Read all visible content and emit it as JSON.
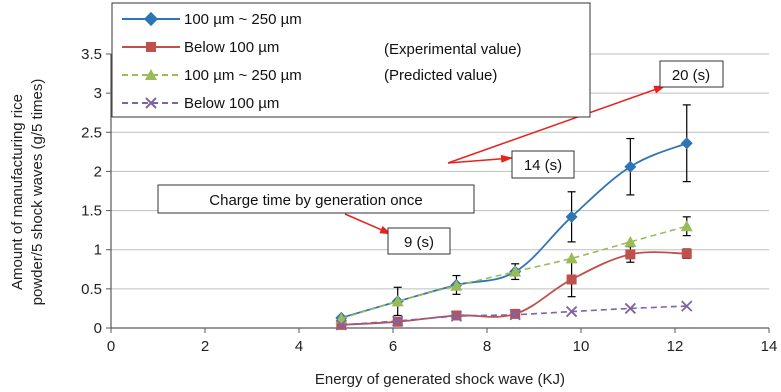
{
  "chart_data": {
    "type": "line",
    "xlabel": "Energy of generated shock wave (KJ)",
    "ylabel_lines": [
      "Amount of manufacturing rice",
      "powder/5 shock waves (g/5 times)"
    ],
    "xlim": [
      0,
      14
    ],
    "ylim": [
      0,
      3.5
    ],
    "x_ticks": [
      "0",
      "2",
      "4",
      "6",
      "8",
      "10",
      "12",
      "14"
    ],
    "y_ticks": [
      "0",
      "0.5",
      "1",
      "1.5",
      "2",
      "2.5",
      "3",
      "3.5"
    ],
    "grid": "horizontal",
    "legend_position": "top-left",
    "series": [
      {
        "name": "100 µm ~ 250 µm",
        "style": "solid-diamond",
        "color": "#2e75b6",
        "x": [
          4.9,
          6.1,
          7.35,
          8.6,
          9.8,
          11.05,
          12.25
        ],
        "y": [
          0.13,
          0.34,
          0.55,
          0.72,
          1.42,
          2.06,
          2.36
        ],
        "err": [
          0,
          0.18,
          0.12,
          0.1,
          0.32,
          0.36,
          0.49
        ]
      },
      {
        "name": "Below 100 µm",
        "style": "solid-square",
        "color": "#c0504d",
        "x": [
          4.9,
          6.1,
          7.35,
          8.6,
          9.8,
          11.05,
          12.25
        ],
        "y": [
          0.04,
          0.08,
          0.16,
          0.18,
          0.62,
          0.94,
          0.95
        ],
        "err": [
          0,
          0,
          0,
          0,
          0.22,
          0.1,
          0.06
        ]
      },
      {
        "name": "100 µm ~ 250 µm",
        "style": "dashed-triangle",
        "color": "#9bbb59",
        "x": [
          4.9,
          6.1,
          7.35,
          8.6,
          9.8,
          11.05,
          12.25
        ],
        "y": [
          0.12,
          0.34,
          0.54,
          0.72,
          0.89,
          1.1,
          1.3
        ],
        "err": [
          0,
          0,
          0,
          0,
          0,
          0,
          0.12
        ]
      },
      {
        "name": "Below 100 µm",
        "style": "dashed-x",
        "color": "#8064a2",
        "x": [
          4.9,
          6.1,
          7.35,
          8.6,
          9.8,
          11.05,
          12.25
        ],
        "y": [
          0.04,
          0.09,
          0.15,
          0.17,
          0.21,
          0.25,
          0.28
        ],
        "err": [
          0,
          0,
          0,
          0,
          0,
          0,
          0
        ]
      }
    ],
    "legend_notes": [
      "(Experimental value)",
      "(Predicted value)"
    ],
    "annotations": {
      "charge_label": "Charge time by generation once",
      "boxes": [
        "9 (s)",
        "14 (s)",
        "20 (s)"
      ]
    }
  },
  "colors": {
    "arrow": "#e8221c",
    "grid": "#bfbfbf",
    "axis": "#595959"
  }
}
